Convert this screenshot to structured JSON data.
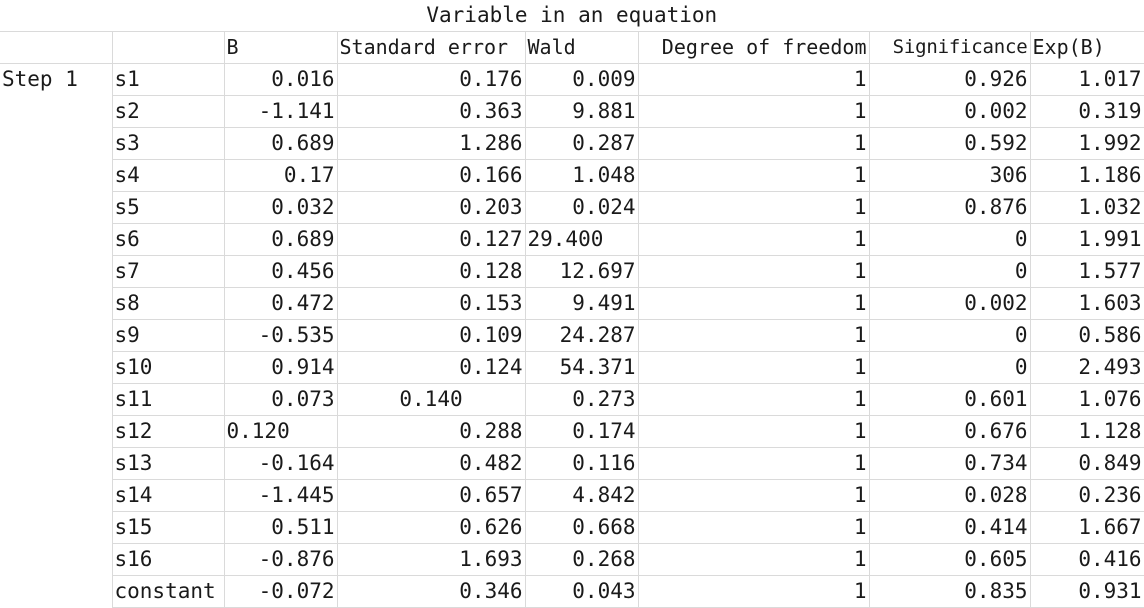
{
  "table": {
    "title": "Variable in an equation",
    "headers": [
      "B",
      "Standard error",
      "Wald",
      "Degree of freedom",
      "Significance",
      "Exp(B)"
    ],
    "step_label": "Step 1",
    "rows": [
      {
        "var": "s1",
        "b": "0.016",
        "se": "0.176",
        "wald": "0.009",
        "df": "1",
        "sig": "0.926",
        "exp": "1.017"
      },
      {
        "var": "s2",
        "b": "-1.141",
        "se": "0.363",
        "wald": "9.881",
        "df": "1",
        "sig": "0.002",
        "exp": "0.319"
      },
      {
        "var": "s3",
        "b": "0.689",
        "se": "1.286",
        "wald": "0.287",
        "df": "1",
        "sig": "0.592",
        "exp": "1.992"
      },
      {
        "var": "s4",
        "b": "0.17",
        "se": "0.166",
        "wald": "1.048",
        "df": "1",
        "sig": "306",
        "exp": "1.186"
      },
      {
        "var": "s5",
        "b": "0.032",
        "se": "0.203",
        "wald": "0.024",
        "df": "1",
        "sig": "0.876",
        "exp": "1.032"
      },
      {
        "var": "s6",
        "b": "0.689",
        "se": "0.127",
        "wald": "29.400",
        "df": "1",
        "sig": "0",
        "exp": "1.991"
      },
      {
        "var": "s7",
        "b": "0.456",
        "se": "0.128",
        "wald": "12.697",
        "df": "1",
        "sig": "0",
        "exp": "1.577"
      },
      {
        "var": "s8",
        "b": "0.472",
        "se": "0.153",
        "wald": "9.491",
        "df": "1",
        "sig": "0.002",
        "exp": "1.603"
      },
      {
        "var": "s9",
        "b": "-0.535",
        "se": "0.109",
        "wald": "24.287",
        "df": "1",
        "sig": "0",
        "exp": "0.586"
      },
      {
        "var": "s10",
        "b": "0.914",
        "se": "0.124",
        "wald": "54.371",
        "df": "1",
        "sig": "0",
        "exp": "2.493"
      },
      {
        "var": "s11",
        "b": "0.073",
        "se": "0.140",
        "wald": "0.273",
        "df": "1",
        "sig": "0.601",
        "exp": "1.076"
      },
      {
        "var": "s12",
        "b": "0.120",
        "se": "0.288",
        "wald": "0.174",
        "df": "1",
        "sig": "0.676",
        "exp": "1.128"
      },
      {
        "var": "s13",
        "b": "-0.164",
        "se": "0.482",
        "wald": "0.116",
        "df": "1",
        "sig": "0.734",
        "exp": "0.849"
      },
      {
        "var": "s14",
        "b": "-1.445",
        "se": "0.657",
        "wald": "4.842",
        "df": "1",
        "sig": "0.028",
        "exp": "0.236"
      },
      {
        "var": "s15",
        "b": "0.511",
        "se": "0.626",
        "wald": "0.668",
        "df": "1",
        "sig": "0.414",
        "exp": "1.667"
      },
      {
        "var": "s16",
        "b": "-0.876",
        "se": "1.693",
        "wald": "0.268",
        "df": "1",
        "sig": "0.605",
        "exp": "0.416"
      },
      {
        "var": "constant",
        "b": "-0.072",
        "se": "0.346",
        "wald": "0.043",
        "df": "1",
        "sig": "0.835",
        "exp": "0.931"
      }
    ]
  }
}
